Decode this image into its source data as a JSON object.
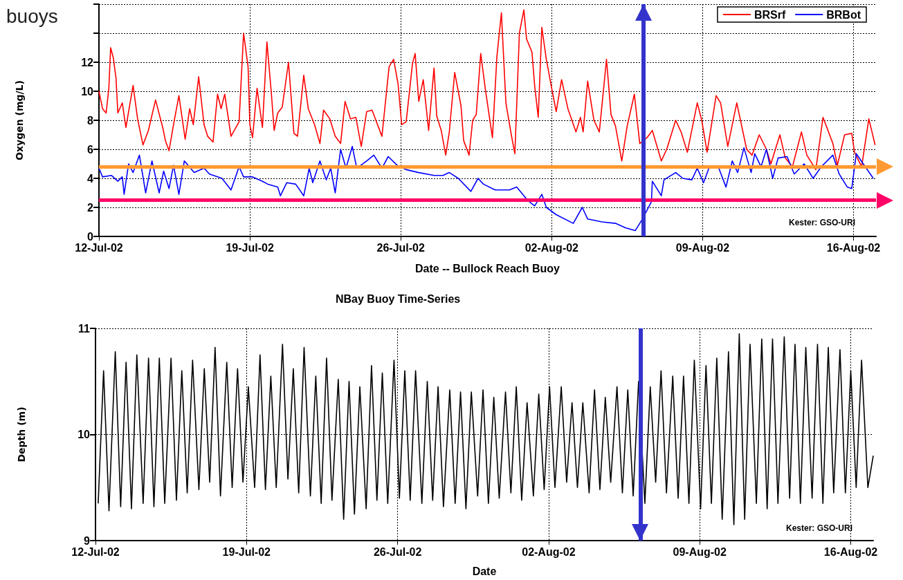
{
  "chart_data": [
    {
      "type": "line",
      "title": "buoys",
      "xlabel": "Date -- Bullock Reach Buoy",
      "ylabel": "Oxygen (mg/L)",
      "xlim": [
        "--07-12T00:00",
        "--08-17T01:00"
      ],
      "xticks": [
        {
          "value": "--07-12",
          "label": "12-Jul-02"
        },
        {
          "value": "--07-19",
          "label": "19-Jul-02"
        },
        {
          "value": "--07-26",
          "label": "26-Jul-02"
        },
        {
          "value": "--08-02",
          "label": "02-Aug-02"
        },
        {
          "value": "--08-09",
          "label": "09-Aug-02"
        },
        {
          "value": "--08-16",
          "label": "16-Aug-02"
        }
      ],
      "ylim": [
        0,
        16
      ],
      "yticks": [
        0,
        2,
        4,
        6,
        8,
        10,
        12,
        {
          "value": 14,
          "label": null
        },
        {
          "value": 16,
          "label": null
        }
      ],
      "grid": true,
      "legend": "top right",
      "series": [
        {
          "name": "BRSrf",
          "color": "#ff0000",
          "x": [
            "--07-12T00:00",
            "--07-12T04:00",
            "--07-12T08:00",
            "--07-12T11:00",
            "--07-12T13:00",
            "--07-12T16:00",
            "--07-12T19:00",
            "--07-12T21:00",
            "--07-13T02:00",
            "--07-13T06:00",
            "--07-13T14:00",
            "--07-13T19:00",
            "--07-14T01:00",
            "--07-14T07:00",
            "--07-14T15:00",
            "--07-14T23:00",
            "--07-15T02:00",
            "--07-15T06:00",
            "--07-15T11:00",
            "--07-15T17:00",
            "--07-16T00:00",
            "--07-16T05:00",
            "--07-16T09:00",
            "--07-16T15:00",
            "--07-16T21:00",
            "--07-17T01:00",
            "--07-17T07:00",
            "--07-17T12:00",
            "--07-17T16:00",
            "--07-17T20:00",
            "--07-18T03:00",
            "--07-18T12:00",
            "--07-18T17:00",
            "--07-18T22:00",
            "--07-19T00:00",
            "--07-19T03:00",
            "--07-19T08:00",
            "--07-19T14:00",
            "--07-19T19:00",
            "--07-20T00:00",
            "--07-20T03:00",
            "--07-20T07:00",
            "--07-20T12:00",
            "--07-20T19:00",
            "--07-21T01:00",
            "--07-21T05:00",
            "--07-21T12:00",
            "--07-21T17:00",
            "--07-22T00:00",
            "--07-22T06:00",
            "--07-22T10:00",
            "--07-22T17:00",
            "--07-22T23:00",
            "--07-23T05:00",
            "--07-23T10:00",
            "--07-23T16:00",
            "--07-23T22:00",
            "--07-24T04:00",
            "--07-24T10:00",
            "--07-24T16:00",
            "--07-25T03:00",
            "--07-25T11:00",
            "--07-25T16:00",
            "--07-25T21:00",
            "--07-26T01:00",
            "--07-26T06:00",
            "--07-26T13:00",
            "--07-26T16:00",
            "--07-26T20:00",
            "--07-27T01:00",
            "--07-27T07:00",
            "--07-27T13:00",
            "--07-27T16:00",
            "--07-27T21:00",
            "--07-28T02:00",
            "--07-28T06:00",
            "--07-28T12:00",
            "--07-28T19:00",
            "--07-28T22:00",
            "--07-29T04:00",
            "--07-29T08:00",
            "--07-29T12:00",
            "--07-29T17:00",
            "--07-29T22:00",
            "--07-30T06:00",
            "--07-30T11:00",
            "--07-30T16:00",
            "--07-30T21:00",
            "--07-31T03:00",
            "--07-31T07:00",
            "--07-31T12:00",
            "--07-31T17:00",
            "--07-31T20:00",
            "--08-01T02:00",
            "--08-01T05:00",
            "--08-01T09:00",
            "--08-01T13:00",
            "--08-01T18:00",
            "--08-02T00:00",
            "--08-02T05:00",
            "--08-02T11:00",
            "--08-02T18:00",
            "--08-03T03:00",
            "--08-03T08:00",
            "--08-03T11:00",
            "--08-03T16:00",
            "--08-03T23:00",
            "--08-04T05:00",
            "--08-04T13:00",
            "--08-04T18:00",
            "--08-04T23:00",
            "--08-05T06:00",
            "--08-05T12:00",
            "--08-05T20:00",
            "--08-06T02:00",
            "--08-06T10:00",
            "--08-06T16:00",
            "--08-07T02:00",
            "--08-07T08:00",
            "--08-07T18:00",
            "--08-08T00:00",
            "--08-08T07:00",
            "--08-08T18:00",
            "--08-08T23:00",
            "--08-09T05:00",
            "--08-09T15:00",
            "--08-09T20:00",
            "--08-10T04:00",
            "--08-10T14:00",
            "--08-11T01:00",
            "--08-11T07:00",
            "--08-11T15:00",
            "--08-11T23:00",
            "--08-12T04:00",
            "--08-12T14:00",
            "--08-12T20:00",
            "--08-13T04:00",
            "--08-13T14:00",
            "--08-13T20:00",
            "--08-14T06:00",
            "--08-14T14:00",
            "--08-15T01:00",
            "--08-15T06:00",
            "--08-15T14:00",
            "--08-15T22:00",
            "--08-16T01:00",
            "--08-16T09:00",
            "--08-16T17:00",
            "--08-17T00:00"
          ],
          "values": [
            10.0,
            8.8,
            8.5,
            10.2,
            13.0,
            12.3,
            10.9,
            8.5,
            9.2,
            7.5,
            10.4,
            8.1,
            6.3,
            7.3,
            9.4,
            7.5,
            6.6,
            5.9,
            7.7,
            9.7,
            6.7,
            8.8,
            7.7,
            11.0,
            7.7,
            6.9,
            6.5,
            9.8,
            8.8,
            9.8,
            6.9,
            7.9,
            14.0,
            11.7,
            7.7,
            6.8,
            10.2,
            7.5,
            13.4,
            9.8,
            7.3,
            8.5,
            8.9,
            12.0,
            7.1,
            6.9,
            11.1,
            8.8,
            7.7,
            6.4,
            8.7,
            8.1,
            6.9,
            6.4,
            9.3,
            8.1,
            8.2,
            6.2,
            8.6,
            8.7,
            6.9,
            11.7,
            12.2,
            10.5,
            7.7,
            7.9,
            11.9,
            12.6,
            9.3,
            10.8,
            7.3,
            11.6,
            8.3,
            7.3,
            5.6,
            7.2,
            11.3,
            9.0,
            6.6,
            5.6,
            8.0,
            8.4,
            12.6,
            10.2,
            6.8,
            12.4,
            15.4,
            9.2,
            7.0,
            5.7,
            14.0,
            15.6,
            13.6,
            12.7,
            10.4,
            8.2,
            14.4,
            12.2,
            10.2,
            8.6,
            10.8,
            8.8,
            7.2,
            8.2,
            7.2,
            10.7,
            8.0,
            7.2,
            12.2,
            8.4,
            7.6,
            5.2,
            7.6,
            9.8,
            6.4,
            6.8,
            7.3,
            5.2,
            6.0,
            8.0,
            7.2,
            5.8,
            9.2,
            8.0,
            5.8,
            9.7,
            9.2,
            6.2,
            9.2,
            6.0,
            5.6,
            7.0,
            6.0,
            5.0,
            7.0,
            5.4,
            4.8,
            7.2,
            5.6,
            4.6,
            8.2,
            6.4,
            4.9,
            7.0,
            7.1,
            5.8,
            4.8,
            8.1,
            6.3
          ]
        },
        {
          "name": "BRBot",
          "color": "#0000ff",
          "x": [
            "--07-12T00:00",
            "--07-12T04:00",
            "--07-12T14:00",
            "--07-12T21:00",
            "--07-13T02:00",
            "--07-13T04:00",
            "--07-13T09:00",
            "--07-13T14:00",
            "--07-13T21:00",
            "--07-14T04:00",
            "--07-14T11:00",
            "--07-14T19:00",
            "--07-15T00:00",
            "--07-15T06:00",
            "--07-15T11:00",
            "--07-15T17:00",
            "--07-15T23:00",
            "--07-16T10:00",
            "--07-16T21:00",
            "--07-17T03:00",
            "--07-17T17:00",
            "--07-18T03:00",
            "--07-18T12:00",
            "--07-18T17:00",
            "--07-19T03:00",
            "--07-19T14:00",
            "--07-19T20:00",
            "--07-20T07:00",
            "--07-20T10:00",
            "--07-20T17:00",
            "--07-21T03:00",
            "--07-21T12:00",
            "--07-21T18:00",
            "--07-21T22:00",
            "--07-22T06:00",
            "--07-22T13:00",
            "--07-22T18:00",
            "--07-22T23:00",
            "--07-23T05:00",
            "--07-23T11:00",
            "--07-23T18:00",
            "--07-23T23:00",
            "--07-24T10:00",
            "--07-24T18:00",
            "--07-25T03:00",
            "--07-25T10:00",
            "--07-25T20:00",
            "--07-26T06:00",
            "--07-26T20:00",
            "--07-27T13:00",
            "--07-27T23:00",
            "--07-28T06:00",
            "--07-28T16:00",
            "--07-29T06:00",
            "--07-29T14:00",
            "--07-29T20:00",
            "--07-30T09:00",
            "--07-31T01:00",
            "--07-31T09:00",
            "--07-31T21:00",
            "--08-01T05:00",
            "--08-01T13:00",
            "--08-01T18:00",
            "--08-02T05:00",
            "--08-03T00:00",
            "--08-03T10:00",
            "--08-03T16:00",
            "--08-04T08:00",
            "--08-04T23:00",
            "--08-05T10:00",
            "--08-05T21:00",
            "--08-06T05:00",
            "--08-06T15:00",
            "--08-06T16:00",
            "--08-07T02:00",
            "--08-07T05:00",
            "--08-07T18:00",
            "--08-08T02:00",
            "--08-08T12:00",
            "--08-08T18:00",
            "--08-09T01:00",
            "--08-09T07:00",
            "--08-09T18:00",
            "--08-10T02:00",
            "--08-10T09:00",
            "--08-10T15:00",
            "--08-10T22:00",
            "--08-11T06:00",
            "--08-11T10:00",
            "--08-11T17:00",
            "--08-11T23:00",
            "--08-12T06:00",
            "--08-12T12:00",
            "--08-12T22:00",
            "--08-13T06:00",
            "--08-13T17:00",
            "--08-14T03:00",
            "--08-14T12:00",
            "--08-15T01:00",
            "--08-15T08:00",
            "--08-15T17:00",
            "--08-15T22:00",
            "--08-16T03:00",
            "--08-16T13:00",
            "--08-16T22:00"
          ],
          "values": [
            4.7,
            4.1,
            4.2,
            3.8,
            4.1,
            2.9,
            5.0,
            4.4,
            5.6,
            3.0,
            5.2,
            3.0,
            4.5,
            3.3,
            4.9,
            2.9,
            5.2,
            4.4,
            4.7,
            4.3,
            4.0,
            3.2,
            4.8,
            4.1,
            4.1,
            3.8,
            3.6,
            3.4,
            2.8,
            3.7,
            3.6,
            2.8,
            4.7,
            3.7,
            5.2,
            3.9,
            4.7,
            3.0,
            6.0,
            4.7,
            6.2,
            4.7,
            5.2,
            5.6,
            4.7,
            5.5,
            4.9,
            4.6,
            4.4,
            4.2,
            4.2,
            4.4,
            4.0,
            3.1,
            4.0,
            3.6,
            3.2,
            3.2,
            3.4,
            2.5,
            2.1,
            2.9,
            2.0,
            1.5,
            0.9,
            2.0,
            1.2,
            1.0,
            0.9,
            0.6,
            0.4,
            1.2,
            2.4,
            3.8,
            2.8,
            3.9,
            4.4,
            4.0,
            3.9,
            4.7,
            3.7,
            4.7,
            4.7,
            3.4,
            5.2,
            4.4,
            6.1,
            4.4,
            5.7,
            4.8,
            6.0,
            4.0,
            5.4,
            5.5,
            4.3,
            5.0,
            4.0,
            4.8,
            5.6,
            4.3,
            3.4,
            3.3,
            5.7,
            4.8,
            4.0
          ]
        }
      ],
      "ref_lines": [
        {
          "axis": "y",
          "value": 4.8,
          "color": "#ff9933"
        },
        {
          "axis": "y",
          "value": 2.5,
          "color": "#ff0066"
        },
        {
          "axis": "x",
          "value": "--08-06T06:00",
          "color": "#3333cc"
        }
      ],
      "annotations": [
        "Kester: GSO-URI"
      ]
    },
    {
      "type": "line",
      "title": "NBay Buoy Time-Series",
      "xlabel": "Date",
      "ylabel": "Depth (m)",
      "xlim": [
        "--07-12T00:00",
        "--08-17T01:00"
      ],
      "xticks": [
        {
          "value": "--07-12",
          "label": "12-Jul-02"
        },
        {
          "value": "--07-19",
          "label": "19-Jul-02"
        },
        {
          "value": "--07-26",
          "label": "26-Jul-02"
        },
        {
          "value": "--08-02",
          "label": "02-Aug-02"
        },
        {
          "value": "--08-09",
          "label": "09-Aug-02"
        },
        {
          "value": "--08-16",
          "label": "16-Aug-02"
        }
      ],
      "ylim": [
        9,
        11
      ],
      "yticks": [
        9,
        10,
        11
      ],
      "grid": true,
      "series": [
        {
          "color": "#000000",
          "x": [
            "--07-12T03:00",
            "--07-12T09:00",
            "--07-12T15:00",
            "--07-12T22:00",
            "--07-13T04:00",
            "--07-13T10:00",
            "--07-13T16:00",
            "--07-13T22:00",
            "--07-14T05:00",
            "--07-14T11:00",
            "--07-14T17:00",
            "--07-14T23:00",
            "--07-15T05:00",
            "--07-15T12:00",
            "--07-15T18:00",
            "--07-16T00:00",
            "--07-16T06:00",
            "--07-16T12:00",
            "--07-16T19:00",
            "--07-17T01:00",
            "--07-17T07:00",
            "--07-17T13:00",
            "--07-17T19:00",
            "--07-18T02:00",
            "--07-18T08:00",
            "--07-18T14:00",
            "--07-18T20:00",
            "--07-19T02:00",
            "--07-19T09:00",
            "--07-19T15:00",
            "--07-19T21:00",
            "--07-20T03:00",
            "--07-20T09:00",
            "--07-20T16:00",
            "--07-20T22:00",
            "--07-21T04:00",
            "--07-21T10:00",
            "--07-21T16:00",
            "--07-21T23:00",
            "--07-22T05:00",
            "--07-22T11:00",
            "--07-22T17:00",
            "--07-22T23:00",
            "--07-23T06:00",
            "--07-23T12:00",
            "--07-23T18:00",
            "--07-24T00:00",
            "--07-24T06:00",
            "--07-24T13:00",
            "--07-24T19:00",
            "--07-25T01:00",
            "--07-25T07:00",
            "--07-25T13:00",
            "--07-25T20:00",
            "--07-26T02:00",
            "--07-26T08:00",
            "--07-26T14:00",
            "--07-26T20:00",
            "--07-27T03:00",
            "--07-27T09:00",
            "--07-27T15:00",
            "--07-27T21:00",
            "--07-28T03:00",
            "--07-28T10:00",
            "--07-28T16:00",
            "--07-28T22:00",
            "--07-29T04:00",
            "--07-29T10:00",
            "--07-29T17:00",
            "--07-29T23:00",
            "--07-30T05:00",
            "--07-30T11:00",
            "--07-30T17:00",
            "--07-31T00:00",
            "--07-31T06:00",
            "--07-31T12:00",
            "--07-31T18:00",
            "--08-01T00:00",
            "--08-01T07:00",
            "--08-01T13:00",
            "--08-01T19:00",
            "--08-02T01:00",
            "--08-02T07:00",
            "--08-02T14:00",
            "--08-02T20:00",
            "--08-03T02:00",
            "--08-03T08:00",
            "--08-03T14:00",
            "--08-03T21:00",
            "--08-04T03:00",
            "--08-04T09:00",
            "--08-04T15:00",
            "--08-04T21:00",
            "--08-05T04:00",
            "--08-05T10:00",
            "--08-05T16:00",
            "--08-05T22:00",
            "--08-06T04:00",
            "--08-06T11:00",
            "--08-06T17:00",
            "--08-06T23:00",
            "--08-07T05:00",
            "--08-07T11:00",
            "--08-07T18:00",
            "--08-08T00:00",
            "--08-08T06:00",
            "--08-08T12:00",
            "--08-08T18:00",
            "--08-09T01:00",
            "--08-09T07:00",
            "--08-09T13:00",
            "--08-09T19:00",
            "--08-10T01:00",
            "--08-10T08:00",
            "--08-10T14:00",
            "--08-10T20:00",
            "--08-11T02:00",
            "--08-11T08:00",
            "--08-11T15:00",
            "--08-11T21:00",
            "--08-12T03:00",
            "--08-12T09:00",
            "--08-12T15:00",
            "--08-12T22:00",
            "--08-13T04:00",
            "--08-13T10:00",
            "--08-13T16:00",
            "--08-13T22:00",
            "--08-14T05:00",
            "--08-14T11:00",
            "--08-14T17:00",
            "--08-14T23:00",
            "--08-15T05:00",
            "--08-15T12:00",
            "--08-15T18:00",
            "--08-16T00:00",
            "--08-16T06:00",
            "--08-16T12:00",
            "--08-16T19:00",
            "--08-17T01:00"
          ],
          "values": [
            9.35,
            10.6,
            9.28,
            10.78,
            9.32,
            10.68,
            9.3,
            10.75,
            9.35,
            10.72,
            9.32,
            10.72,
            9.35,
            10.72,
            9.38,
            10.6,
            9.45,
            10.7,
            9.48,
            10.62,
            9.55,
            10.82,
            9.42,
            10.68,
            9.5,
            10.62,
            9.55,
            10.45,
            9.5,
            10.75,
            9.48,
            10.55,
            9.5,
            10.85,
            9.58,
            10.62,
            9.45,
            10.82,
            9.42,
            10.55,
            9.35,
            10.72,
            9.38,
            10.52,
            9.2,
            10.5,
            9.25,
            10.45,
            9.3,
            10.65,
            9.38,
            10.58,
            9.35,
            10.7,
            9.4,
            10.6,
            9.38,
            10.6,
            9.35,
            10.5,
            9.38,
            10.45,
            9.32,
            10.42,
            9.35,
            10.4,
            9.3,
            10.4,
            9.42,
            10.42,
            9.35,
            10.35,
            9.4,
            10.4,
            9.45,
            10.45,
            9.38,
            10.3,
            9.42,
            10.38,
            9.48,
            10.45,
            9.5,
            10.45,
            9.55,
            10.3,
            9.5,
            10.3,
            9.45,
            10.42,
            9.48,
            10.35,
            9.55,
            10.45,
            9.45,
            10.42,
            9.42,
            10.5,
            9.35,
            10.45,
            9.55,
            10.6,
            9.45,
            10.55,
            9.4,
            10.55,
            9.35,
            10.7,
            9.3,
            10.65,
            9.35,
            10.72,
            9.2,
            10.78,
            9.15,
            10.95,
            9.2,
            10.85,
            9.35,
            10.9,
            9.3,
            10.9,
            9.35,
            10.92,
            9.4,
            10.85,
            9.35,
            10.82,
            9.4,
            10.85,
            9.35,
            10.82,
            9.45,
            10.8,
            9.45,
            10.6,
            9.5,
            10.7,
            9.5,
            9.8
          ]
        }
      ],
      "ref_lines": [
        {
          "axis": "x",
          "value": "--08-06T06:00",
          "color": "#3333cc"
        }
      ],
      "annotations": [
        "Kester: GSO-URI"
      ]
    }
  ]
}
